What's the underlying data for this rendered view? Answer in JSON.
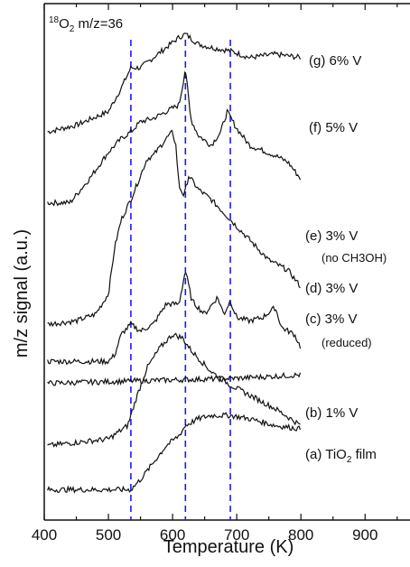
{
  "chart_data": {
    "type": "line",
    "title": "18O2 m/z=36",
    "title_parts": {
      "sup": "18",
      "main": "O",
      "sub": "2",
      "rest": " m/z=36"
    },
    "xlabel": "Temperature (K)",
    "ylabel": "m/z signal (a.u.)",
    "xlim": [
      400,
      970
    ],
    "x_ticks": [
      400,
      500,
      600,
      700,
      800,
      900
    ],
    "grid": false,
    "y_tick_labels": false,
    "reference_lines": {
      "x": [
        535,
        620,
        690
      ],
      "style": "dashed",
      "color": "#1a1aff"
    },
    "series": [
      {
        "key": "g",
        "label": "(g) 6% V",
        "points": [
          [
            405,
            9.0
          ],
          [
            450,
            9.2
          ],
          [
            500,
            9.6
          ],
          [
            520,
            10.3
          ],
          [
            535,
            10.9
          ],
          [
            550,
            10.9
          ],
          [
            570,
            11.2
          ],
          [
            590,
            11.5
          ],
          [
            610,
            11.8
          ],
          [
            620,
            11.9
          ],
          [
            640,
            11.6
          ],
          [
            660,
            11.5
          ],
          [
            690,
            11.4
          ],
          [
            720,
            11.2
          ],
          [
            760,
            11.3
          ],
          [
            800,
            11.2
          ]
        ]
      },
      {
        "key": "f",
        "label": "(f) 5% V",
        "points": [
          [
            405,
            6.9
          ],
          [
            440,
            6.9
          ],
          [
            470,
            7.6
          ],
          [
            500,
            8.4
          ],
          [
            520,
            8.8
          ],
          [
            535,
            9.0
          ],
          [
            550,
            9.3
          ],
          [
            570,
            9.4
          ],
          [
            590,
            9.6
          ],
          [
            610,
            9.8
          ],
          [
            615,
            10.3
          ],
          [
            620,
            10.9
          ],
          [
            628,
            9.4
          ],
          [
            640,
            8.9
          ],
          [
            660,
            8.6
          ],
          [
            675,
            9.0
          ],
          [
            685,
            9.6
          ],
          [
            700,
            9.1
          ],
          [
            720,
            8.6
          ],
          [
            760,
            8.3
          ],
          [
            780,
            8.1
          ],
          [
            800,
            7.6
          ]
        ]
      },
      {
        "key": "e",
        "label": "(e) 3% V",
        "note": "(no CH3OH)",
        "points": [
          [
            405,
            3.3
          ],
          [
            450,
            3.4
          ],
          [
            480,
            3.6
          ],
          [
            500,
            4.2
          ],
          [
            510,
            5.6
          ],
          [
            520,
            6.4
          ],
          [
            535,
            7.0
          ],
          [
            550,
            7.7
          ],
          [
            560,
            8.2
          ],
          [
            570,
            8.3
          ],
          [
            590,
            8.8
          ],
          [
            600,
            9.0
          ],
          [
            605,
            8.6
          ],
          [
            610,
            7.4
          ],
          [
            618,
            7.1
          ],
          [
            625,
            7.7
          ],
          [
            640,
            7.3
          ],
          [
            660,
            7.0
          ],
          [
            690,
            6.4
          ],
          [
            720,
            5.8
          ],
          [
            750,
            5.2
          ],
          [
            780,
            4.9
          ],
          [
            800,
            4.4
          ]
        ]
      },
      {
        "key": "d",
        "label": "(d) 3% V",
        "points": [
          [
            405,
            2.2
          ],
          [
            460,
            2.2
          ],
          [
            500,
            2.2
          ],
          [
            510,
            2.4
          ],
          [
            520,
            3.0
          ],
          [
            535,
            3.3
          ],
          [
            550,
            3.1
          ],
          [
            570,
            3.3
          ],
          [
            590,
            3.9
          ],
          [
            610,
            3.9
          ],
          [
            620,
            4.9
          ],
          [
            630,
            4.0
          ],
          [
            650,
            3.6
          ],
          [
            670,
            4.1
          ],
          [
            680,
            3.6
          ],
          [
            690,
            4.0
          ],
          [
            700,
            3.5
          ],
          [
            720,
            3.4
          ],
          [
            740,
            3.5
          ],
          [
            760,
            3.8
          ],
          [
            770,
            3.2
          ],
          [
            790,
            3.0
          ],
          [
            800,
            2.6
          ]
        ]
      },
      {
        "key": "c",
        "label": "(c) 3% V",
        "note": "(reduced)",
        "points": [
          [
            405,
            1.55
          ],
          [
            500,
            1.6
          ],
          [
            600,
            1.65
          ],
          [
            700,
            1.7
          ],
          [
            800,
            1.8
          ]
        ]
      },
      {
        "key": "b",
        "label": "(b) 1% V",
        "points": [
          [
            405,
            -0.3
          ],
          [
            450,
            -0.2
          ],
          [
            500,
            -0.1
          ],
          [
            530,
            0.3
          ],
          [
            545,
            1.2
          ],
          [
            560,
            2.0
          ],
          [
            580,
            2.6
          ],
          [
            600,
            3.0
          ],
          [
            615,
            2.9
          ],
          [
            630,
            2.5
          ],
          [
            660,
            1.9
          ],
          [
            690,
            1.5
          ],
          [
            720,
            1.2
          ],
          [
            760,
            0.8
          ],
          [
            800,
            0.3
          ]
        ]
      },
      {
        "key": "a",
        "label": "(a) TiO2 film",
        "label_parts": {
          "main": "(a) TiO",
          "sub": "2",
          "rest": " film"
        },
        "points": [
          [
            405,
            -1.6
          ],
          [
            450,
            -1.6
          ],
          [
            500,
            -1.6
          ],
          [
            535,
            -1.6
          ],
          [
            550,
            -1.3
          ],
          [
            570,
            -0.8
          ],
          [
            590,
            -0.3
          ],
          [
            610,
            0.0
          ],
          [
            620,
            0.3
          ],
          [
            640,
            0.5
          ],
          [
            660,
            0.6
          ],
          [
            690,
            0.6
          ],
          [
            720,
            0.5
          ],
          [
            760,
            0.3
          ],
          [
            800,
            0.2
          ]
        ]
      }
    ]
  }
}
